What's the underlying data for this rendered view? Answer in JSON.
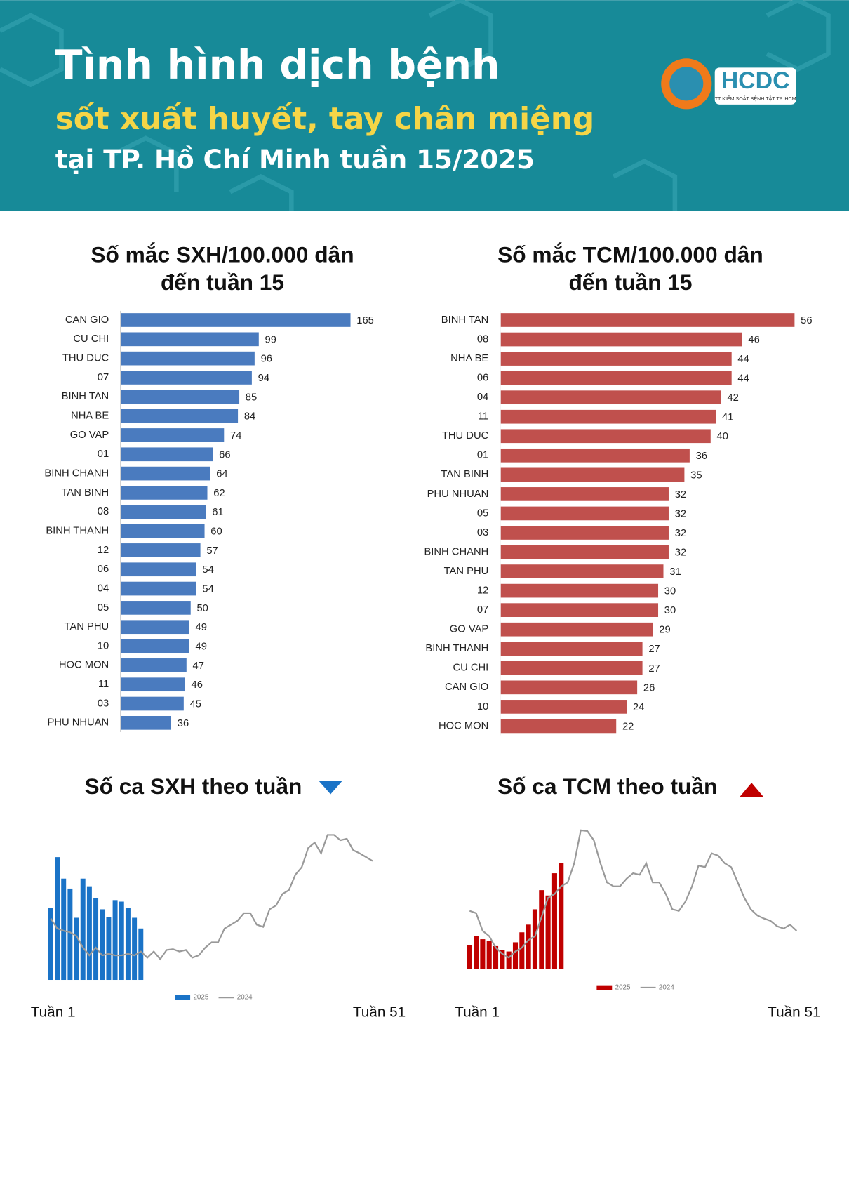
{
  "header": {
    "title": "Tình hình dịch bệnh",
    "subtitle": "sốt xuất huyết, tay chân miệng",
    "subtitle2": "tại TP. Hồ Chí Minh tuần 15/2025",
    "logo": "HCDC",
    "logo_sub": "TT KIỂM SOÁT BỆNH TẬT TP. HCM"
  },
  "chart_data": [
    {
      "type": "hbar",
      "title": [
        "Số mắc SXH/100.000 dân",
        "đến tuần 15"
      ],
      "color": "#4a7bbf",
      "categories": [
        "CAN GIO",
        "CU CHI",
        "THU DUC",
        "07",
        "BINH TAN",
        "NHA BE",
        "GO VAP",
        "01",
        "BINH CHANH",
        "TAN BINH",
        "08",
        "BINH THANH",
        "12",
        "06",
        "04",
        "05",
        "TAN PHU",
        "10",
        "HOC MON",
        "11",
        "03",
        "PHU NHUAN"
      ],
      "values": [
        165,
        99,
        96,
        94,
        85,
        84,
        74,
        66,
        64,
        62,
        61,
        60,
        57,
        54,
        54,
        50,
        49,
        49,
        47,
        46,
        45,
        36
      ]
    },
    {
      "type": "hbar",
      "title": [
        "Số mắc TCM/100.000 dân",
        "đến tuần 15"
      ],
      "color": "#c0504d",
      "categories": [
        "BINH TAN",
        "08",
        "NHA BE",
        "06",
        "04",
        "11",
        "THU DUC",
        "01",
        "TAN BINH",
        "PHU NHUAN",
        "05",
        "03",
        "BINH CHANH",
        "TAN PHU",
        "12",
        "07",
        "GO VAP",
        "BINH THANH",
        "CU CHI",
        "CAN GIO",
        "10",
        "HOC MON"
      ],
      "values": [
        56,
        46,
        44,
        44,
        42,
        41,
        40,
        36,
        35,
        32,
        32,
        32,
        32,
        31,
        30,
        30,
        29,
        27,
        27,
        26,
        24,
        22
      ]
    },
    {
      "type": "combo",
      "title": "Số ca SXH theo tuần",
      "x": [
        1,
        2,
        3,
        4,
        5,
        6,
        7,
        8,
        9,
        10,
        11,
        12,
        13,
        14,
        15,
        16,
        17,
        18,
        19,
        20,
        21,
        22,
        23,
        24,
        25,
        26,
        27,
        28,
        29,
        30,
        31,
        32,
        33,
        34,
        35,
        36,
        37,
        38,
        39,
        40,
        41,
        42,
        43,
        44,
        45,
        46,
        47,
        48,
        49,
        50,
        51
      ],
      "xlim": [
        1,
        51
      ],
      "xticks": [
        {
          "value": 1,
          "label": "Tuần 1"
        },
        {
          "value": 51,
          "label": "Tuần 51"
        }
      ],
      "ylim": [
        0,
        200
      ],
      "series": [
        {
          "name": "2025",
          "type": "bar",
          "color": "#1a73c7",
          "values": [
            94,
            160,
            132,
            119,
            81,
            132,
            122,
            107,
            92,
            82,
            104,
            102,
            94,
            81,
            67,
            null,
            null,
            null,
            null,
            null,
            null,
            null,
            null,
            null,
            null,
            null,
            null,
            null,
            null,
            null,
            null,
            null,
            null,
            null,
            null,
            null,
            null,
            null,
            null,
            null,
            null,
            null,
            null,
            null,
            null,
            null,
            null,
            null,
            null,
            null,
            null
          ]
        },
        {
          "name": "2024",
          "type": "line",
          "color": "#999999",
          "values": [
            80,
            67,
            64,
            62,
            57,
            42,
            32,
            42,
            32,
            34,
            32,
            32,
            34,
            32,
            37,
            29,
            37,
            27,
            39,
            40,
            37,
            39,
            29,
            32,
            42,
            49,
            49,
            67,
            72,
            77,
            87,
            87,
            72,
            69,
            92,
            97,
            112,
            117,
            137,
            147,
            172,
            179,
            165,
            189,
            189,
            182,
            184,
            169,
            165,
            160,
            155
          ]
        }
      ]
    },
    {
      "type": "combo",
      "title": "Số ca TCM theo tuần",
      "x": [
        1,
        2,
        3,
        4,
        5,
        6,
        7,
        8,
        9,
        10,
        11,
        12,
        13,
        14,
        15,
        16,
        17,
        18,
        19,
        20,
        21,
        22,
        23,
        24,
        25,
        26,
        27,
        28,
        29,
        30,
        31,
        32,
        33,
        34,
        35,
        36,
        37,
        38,
        39,
        40,
        41,
        42,
        43,
        44,
        45,
        46,
        47,
        48,
        49,
        50,
        51
      ],
      "xlim": [
        1,
        51
      ],
      "xticks": [
        {
          "value": 1,
          "label": "Tuần 1"
        },
        {
          "value": 51,
          "label": "Tuần 51"
        }
      ],
      "ylim": [
        0,
        200
      ],
      "series": [
        {
          "name": "2025",
          "type": "bar",
          "color": "#c00000",
          "values": [
            31,
            43,
            39,
            37,
            30,
            25,
            23,
            35,
            48,
            58,
            78,
            103,
            96,
            125,
            138,
            null,
            null,
            null,
            null,
            null,
            null,
            null,
            null,
            null,
            null,
            null,
            null,
            null,
            null,
            null,
            null,
            null,
            null,
            null,
            null,
            null,
            null,
            null,
            null,
            null,
            null,
            null,
            null,
            null,
            null,
            null,
            null,
            null,
            null,
            null,
            null
          ]
        },
        {
          "name": "2024",
          "type": "line",
          "color": "#999999",
          "values": [
            76,
            73,
            50,
            43,
            28,
            20,
            15,
            23,
            28,
            38,
            43,
            68,
            93,
            98,
            108,
            113,
            138,
            181,
            180,
            168,
            138,
            113,
            108,
            108,
            118,
            125,
            123,
            138,
            113,
            113,
            98,
            78,
            76,
            88,
            108,
            135,
            133,
            151,
            148,
            138,
            133,
            113,
            93,
            78,
            70,
            66,
            63,
            56,
            53,
            58,
            50
          ]
        }
      ]
    }
  ]
}
